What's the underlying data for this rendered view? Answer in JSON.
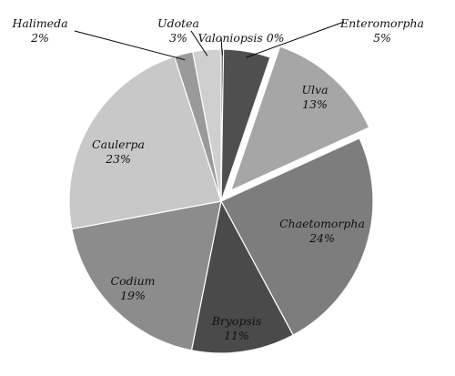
{
  "chart_data": {
    "type": "pie",
    "title": "",
    "start_angle_deg": 0,
    "direction": "clockwise",
    "slices": [
      {
        "name": "Valoniopsis",
        "value": 0,
        "label": "0%",
        "color": "#3a3a3a",
        "exploded": false
      },
      {
        "name": "Enteromorpha",
        "value": 5,
        "label": "5%",
        "color": "#4f4f4f",
        "exploded": false
      },
      {
        "name": "Ulva",
        "value": 13,
        "label": "13%",
        "color": "#a6a6a6",
        "exploded": true
      },
      {
        "name": "Chaetomorpha",
        "value": 24,
        "label": "24%",
        "color": "#7d7d7d",
        "exploded": false
      },
      {
        "name": "Bryopsis",
        "value": 11,
        "label": "11%",
        "color": "#4a4a4a",
        "exploded": false
      },
      {
        "name": "Codium",
        "value": 19,
        "label": "19%",
        "color": "#8c8c8c",
        "exploded": false
      },
      {
        "name": "Caulerpa",
        "value": 23,
        "label": "23%",
        "color": "#c8c8c8",
        "exploded": false
      },
      {
        "name": "Halimeda",
        "value": 2,
        "label": "2%",
        "color": "#9a9a9a",
        "exploded": false
      },
      {
        "name": "Udotea",
        "value": 3,
        "label": "3%",
        "color": "#cfcfcf",
        "exploded": false
      }
    ]
  }
}
